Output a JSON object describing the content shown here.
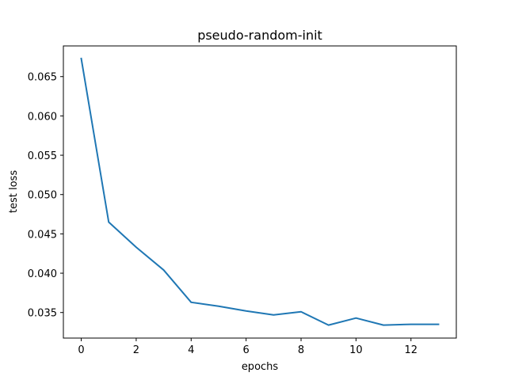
{
  "chart_data": {
    "type": "line",
    "title": "pseudo-random-init",
    "xlabel": "epochs",
    "ylabel": "test loss",
    "xlim": [
      -0.65,
      13.65
    ],
    "ylim": [
      0.03175,
      0.0689
    ],
    "xticks": [
      0,
      2,
      4,
      6,
      8,
      10,
      12
    ],
    "xtick_labels": [
      "0",
      "2",
      "4",
      "6",
      "8",
      "10",
      "12"
    ],
    "yticks": [
      0.035,
      0.04,
      0.045,
      0.05,
      0.055,
      0.06,
      0.065
    ],
    "ytick_labels": [
      "0.035",
      "0.040",
      "0.045",
      "0.050",
      "0.055",
      "0.060",
      "0.065"
    ],
    "grid": false,
    "series": [
      {
        "color": "#1f77b4",
        "x": [
          0,
          1,
          2,
          3,
          4,
          5,
          6,
          7,
          8,
          9,
          10,
          11,
          12,
          13
        ],
        "y": [
          0.0673,
          0.0465,
          0.0433,
          0.0404,
          0.0363,
          0.0358,
          0.0352,
          0.0347,
          0.0351,
          0.0334,
          0.0343,
          0.0334,
          0.0335,
          0.0335
        ]
      }
    ]
  }
}
